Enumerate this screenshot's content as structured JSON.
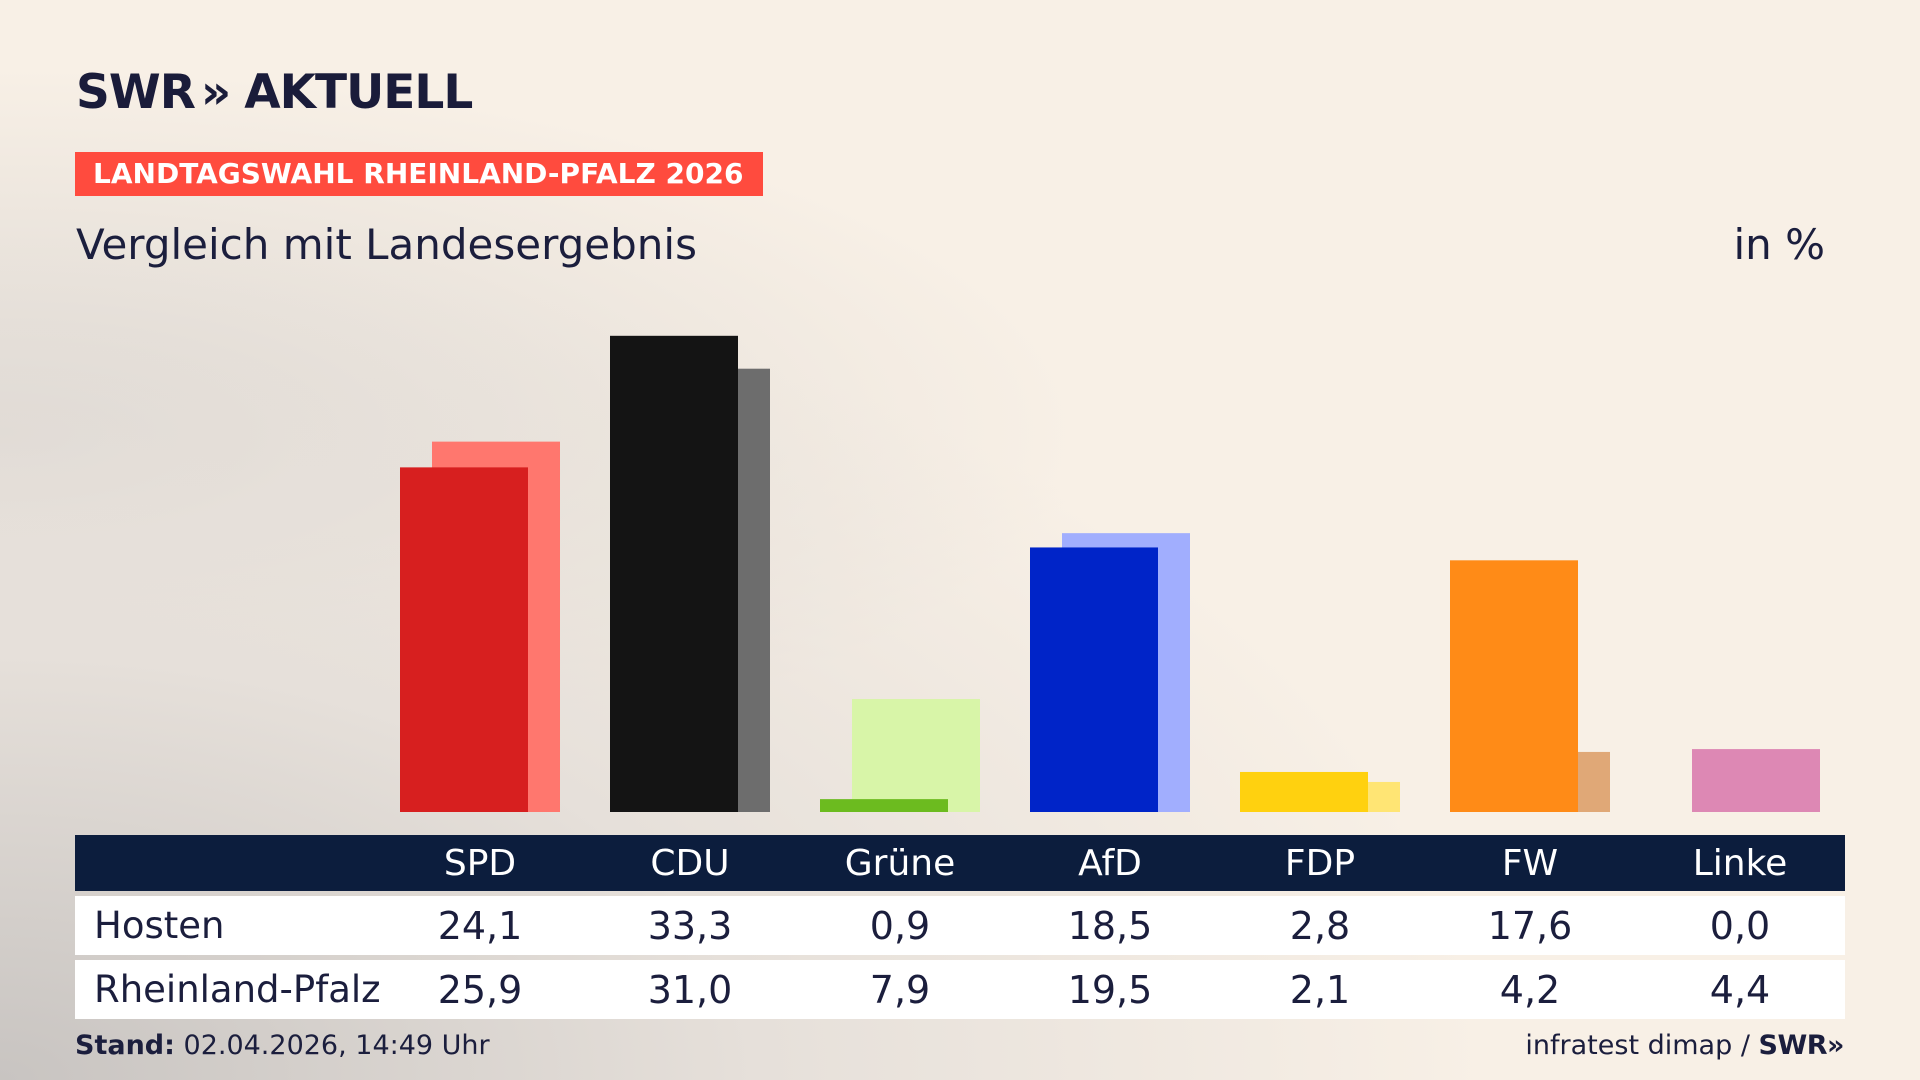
{
  "brand": {
    "logo_left": "SWR",
    "logo_chevrons": "»",
    "logo_right": "AKTUELL"
  },
  "header": {
    "tag": "LANDTAGSWAHL RHEINLAND-PFALZ 2026",
    "subtitle": "Vergleich mit Landesergebnis",
    "unit": "in %"
  },
  "chart_data": {
    "type": "bar",
    "categories": [
      "SPD",
      "CDU",
      "Grüne",
      "AfD",
      "FDP",
      "FW",
      "Linke"
    ],
    "series": [
      {
        "name": "Hosten",
        "values": [
          24.1,
          33.3,
          0.9,
          18.5,
          2.8,
          17.6,
          0.0
        ]
      },
      {
        "name": "Rheinland-Pfalz",
        "values": [
          25.9,
          31.0,
          7.9,
          19.5,
          2.1,
          4.2,
          4.4
        ]
      }
    ],
    "colors": {
      "primary": [
        "#d71f1f",
        "#141414",
        "#6cbb1f",
        "#0024c8",
        "#ffd10f",
        "#ff8b17",
        "#dd88b4"
      ],
      "secondary": [
        "#ff776e",
        "#6d6d6d",
        "#d8f5a8",
        "#a1aefe",
        "#ffe574",
        "#e0a877",
        "#dd88b4"
      ]
    },
    "ylim": [
      0,
      35
    ]
  },
  "table": {
    "rows": [
      {
        "label": "Hosten",
        "values": [
          "24,1",
          "33,3",
          "0,9",
          "18,5",
          "2,8",
          "17,6",
          "0,0"
        ]
      },
      {
        "label": "Rheinland-Pfalz",
        "values": [
          "25,9",
          "31,0",
          "7,9",
          "19,5",
          "2,1",
          "4,2",
          "4,4"
        ]
      }
    ]
  },
  "footer": {
    "stand_label": "Stand:",
    "stand_value": "02.04.2026, 14:49 Uhr",
    "source": "infratest dimap /",
    "source_logo": "SWR»"
  }
}
